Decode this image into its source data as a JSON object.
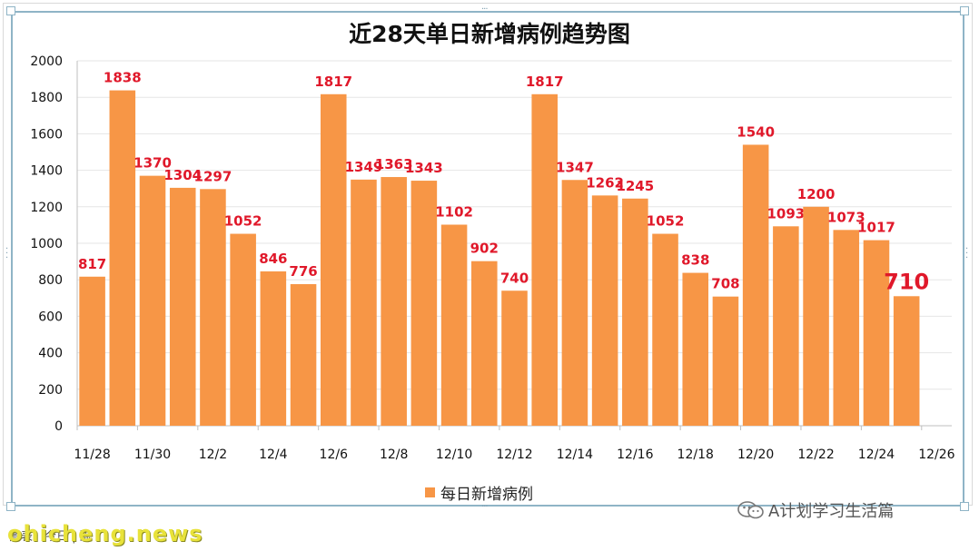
{
  "chart_data": {
    "type": "bar",
    "title": "近28天单日新增病例趋势图",
    "categories": [
      "11/28",
      "11/29",
      "11/30",
      "12/1",
      "12/2",
      "12/3",
      "12/4",
      "12/5",
      "12/6",
      "12/7",
      "12/8",
      "12/9",
      "12/10",
      "12/11",
      "12/12",
      "12/13",
      "12/14",
      "12/15",
      "12/16",
      "12/17",
      "12/18",
      "12/19",
      "12/20",
      "12/21",
      "12/22",
      "12/23",
      "12/24",
      "12/25"
    ],
    "series": [
      {
        "name": "每日新增病例",
        "values": [
          817,
          1838,
          1370,
          1304,
          1297,
          1052,
          846,
          776,
          1817,
          1349,
          1363,
          1343,
          1102,
          902,
          740,
          1817,
          1347,
          1262,
          1245,
          1052,
          838,
          708,
          1540,
          1093,
          1200,
          1073,
          1017,
          710
        ]
      }
    ],
    "x_tick_labels": [
      "11/28",
      "11/30",
      "12/2",
      "12/4",
      "12/6",
      "12/8",
      "12/10",
      "12/12",
      "12/14",
      "12/16",
      "12/18",
      "12/20",
      "12/22",
      "12/24",
      "12/26"
    ],
    "y_tick_labels": [
      "0",
      "200",
      "400",
      "600",
      "800",
      "1000",
      "1200",
      "1400",
      "1600",
      "1800",
      "2000"
    ],
    "ylim": [
      0,
      2000
    ],
    "xlabel": "",
    "ylabel": "",
    "grid": true,
    "legend": "bottom-center",
    "bar_color": "#f79646",
    "label_color": "#e0182a",
    "highlight_last_label": true
  },
  "wechat_account": "A计划学习生活篇",
  "watermark": "ohicheng.news",
  "source_note": "图表：今日 | 陈"
}
